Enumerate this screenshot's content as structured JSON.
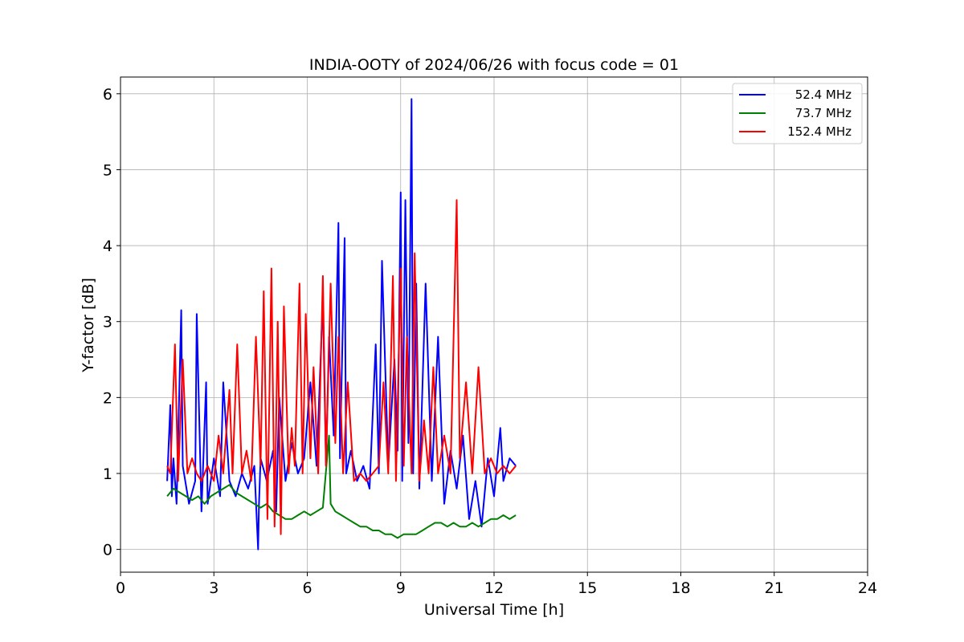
{
  "chart_data": {
    "type": "line",
    "title": "INDIA-OOTY of 2024/06/26 with focus code = 01",
    "xlabel": "Universal Time [h]",
    "ylabel": "Y-factor [dB]",
    "xlim": [
      0,
      24
    ],
    "ylim": [
      -0.3,
      6.22
    ],
    "xticks": [
      0,
      3,
      6,
      9,
      12,
      15,
      18,
      21,
      24
    ],
    "yticks": [
      0,
      1,
      2,
      3,
      4,
      5,
      6
    ],
    "grid": true,
    "legend": "top-right",
    "series": [
      {
        "name": "52.4 MHz",
        "color": "#0000ff",
        "x": [
          1.5,
          1.6,
          1.65,
          1.7,
          1.8,
          1.95,
          2.0,
          2.2,
          2.4,
          2.45,
          2.6,
          2.75,
          2.8,
          3.0,
          3.2,
          3.3,
          3.5,
          3.7,
          3.9,
          4.1,
          4.3,
          4.42,
          4.45,
          4.5,
          4.7,
          4.9,
          5.0,
          5.1,
          5.3,
          5.5,
          5.7,
          5.9,
          6.1,
          6.3,
          6.5,
          6.6,
          6.7,
          6.85,
          7.0,
          7.05,
          7.2,
          7.25,
          7.4,
          7.6,
          7.8,
          8.0,
          8.2,
          8.3,
          8.4,
          8.6,
          8.8,
          8.9,
          9.0,
          9.05,
          9.15,
          9.25,
          9.35,
          9.4,
          9.5,
          9.6,
          9.8,
          10.0,
          10.2,
          10.4,
          10.6,
          10.8,
          11.0,
          11.2,
          11.4,
          11.6,
          11.8,
          12.0,
          12.2,
          12.3,
          12.5,
          12.7
        ],
        "values": [
          0.9,
          1.9,
          0.7,
          1.2,
          0.6,
          3.15,
          1.1,
          0.6,
          0.9,
          3.1,
          0.5,
          2.2,
          0.6,
          1.2,
          0.7,
          2.2,
          0.9,
          0.7,
          1.0,
          0.8,
          1.1,
          0.0,
          0.6,
          1.2,
          0.9,
          1.3,
          0.5,
          2.0,
          0.9,
          1.4,
          1.0,
          1.2,
          2.2,
          1.1,
          3.3,
          1.1,
          2.8,
          1.5,
          4.3,
          1.2,
          4.1,
          1.0,
          1.3,
          0.9,
          1.1,
          0.8,
          2.7,
          1.0,
          3.8,
          1.1,
          2.5,
          1.3,
          4.7,
          0.9,
          4.6,
          1.4,
          5.93,
          1.0,
          3.5,
          0.8,
          3.5,
          0.9,
          2.8,
          0.6,
          1.3,
          0.8,
          1.5,
          0.4,
          0.9,
          0.3,
          1.2,
          0.7,
          1.6,
          0.9,
          1.2,
          1.1
        ]
      },
      {
        "name": "73.7 MHz",
        "color": "#008000",
        "x": [
          1.5,
          1.7,
          1.9,
          2.1,
          2.3,
          2.5,
          2.7,
          2.9,
          3.1,
          3.3,
          3.5,
          3.7,
          3.9,
          4.1,
          4.3,
          4.5,
          4.7,
          4.9,
          5.1,
          5.3,
          5.5,
          5.7,
          5.9,
          6.1,
          6.3,
          6.5,
          6.7,
          6.75,
          6.9,
          7.1,
          7.3,
          7.5,
          7.7,
          7.9,
          8.1,
          8.3,
          8.5,
          8.7,
          8.9,
          9.1,
          9.3,
          9.5,
          9.7,
          9.9,
          10.1,
          10.3,
          10.5,
          10.7,
          10.9,
          11.1,
          11.3,
          11.5,
          11.7,
          11.9,
          12.1,
          12.3,
          12.5,
          12.7
        ],
        "values": [
          0.7,
          0.8,
          0.75,
          0.7,
          0.65,
          0.7,
          0.6,
          0.7,
          0.75,
          0.8,
          0.85,
          0.75,
          0.7,
          0.65,
          0.6,
          0.55,
          0.6,
          0.5,
          0.45,
          0.4,
          0.4,
          0.45,
          0.5,
          0.45,
          0.5,
          0.55,
          1.5,
          0.6,
          0.5,
          0.45,
          0.4,
          0.35,
          0.3,
          0.3,
          0.25,
          0.25,
          0.2,
          0.2,
          0.15,
          0.2,
          0.2,
          0.2,
          0.25,
          0.3,
          0.35,
          0.35,
          0.3,
          0.35,
          0.3,
          0.3,
          0.35,
          0.3,
          0.35,
          0.4,
          0.4,
          0.45,
          0.4,
          0.45
        ]
      },
      {
        "name": "152.4 MHz",
        "color": "#ff0000",
        "x": [
          1.5,
          1.6,
          1.75,
          1.85,
          2.0,
          2.15,
          2.3,
          2.45,
          2.6,
          2.8,
          3.0,
          3.15,
          3.3,
          3.5,
          3.6,
          3.75,
          3.9,
          4.05,
          4.2,
          4.35,
          4.5,
          4.6,
          4.72,
          4.85,
          4.95,
          5.05,
          5.15,
          5.25,
          5.4,
          5.5,
          5.6,
          5.75,
          5.85,
          5.95,
          6.1,
          6.2,
          6.35,
          6.5,
          6.6,
          6.75,
          6.9,
          7.0,
          7.15,
          7.3,
          7.5,
          7.7,
          7.9,
          8.1,
          8.3,
          8.45,
          8.6,
          8.75,
          8.85,
          9.0,
          9.1,
          9.2,
          9.35,
          9.45,
          9.6,
          9.75,
          9.9,
          10.05,
          10.2,
          10.4,
          10.6,
          10.8,
          10.9,
          11.1,
          11.3,
          11.5,
          11.7,
          11.9,
          12.1,
          12.3,
          12.5,
          12.7
        ],
        "values": [
          1.1,
          1.0,
          2.7,
          0.9,
          2.5,
          1.0,
          1.2,
          1.0,
          0.9,
          1.1,
          0.9,
          1.5,
          1.0,
          2.1,
          1.0,
          2.7,
          1.0,
          1.3,
          0.9,
          2.8,
          1.1,
          3.4,
          0.4,
          3.7,
          0.3,
          3.0,
          0.2,
          3.2,
          1.0,
          1.6,
          1.1,
          3.5,
          1.0,
          3.1,
          1.2,
          2.4,
          1.0,
          3.6,
          1.1,
          3.5,
          1.4,
          2.8,
          1.0,
          2.2,
          0.9,
          1.0,
          0.9,
          1.0,
          1.1,
          2.2,
          1.0,
          3.6,
          0.9,
          3.7,
          1.1,
          2.8,
          1.0,
          3.9,
          0.9,
          1.7,
          1.0,
          2.4,
          1.0,
          1.5,
          1.0,
          4.6,
          1.2,
          2.2,
          1.0,
          2.4,
          1.0,
          1.2,
          1.0,
          1.1,
          1.0,
          1.1
        ]
      }
    ]
  }
}
